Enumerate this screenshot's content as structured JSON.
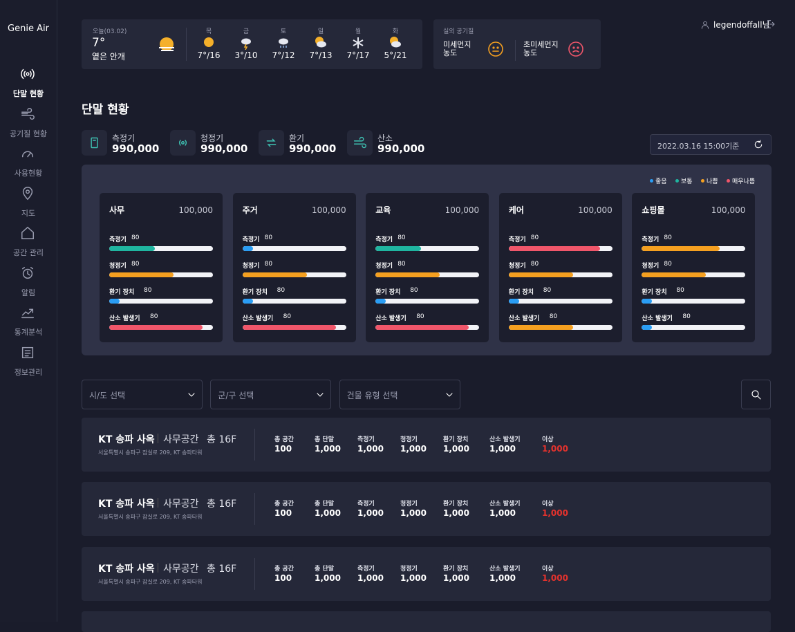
{
  "sidebar": {
    "brand": "Genie Air",
    "menu": [
      {
        "label": "단말 현황",
        "active": true
      },
      {
        "label": "공기질 현황"
      },
      {
        "label": "사용현황"
      },
      {
        "label": "지도"
      },
      {
        "label": "공간 관리"
      },
      {
        "label": "알림"
      },
      {
        "label": "통계분석"
      },
      {
        "label": "정보관리"
      }
    ]
  },
  "weather": {
    "today": {
      "label": "오늘(03.02)",
      "temp": "7°",
      "desc": "옅은 안개"
    },
    "forecast": [
      {
        "day": "목",
        "temp": "7°/16",
        "icon": "sun"
      },
      {
        "day": "금",
        "temp": "3°/10",
        "icon": "storm"
      },
      {
        "day": "토",
        "temp": "7°/12",
        "icon": "snowrain"
      },
      {
        "day": "일",
        "temp": "7°/13",
        "icon": "cloudsun"
      },
      {
        "day": "월",
        "temp": "7°/17",
        "icon": "snow"
      },
      {
        "day": "화",
        "temp": "5°/21",
        "icon": "cloudsun"
      }
    ]
  },
  "air": {
    "title": "실외 공기질",
    "items": [
      {
        "label": "미세먼지\n농도",
        "color": "#f5a020",
        "mood": "neutral"
      },
      {
        "label": "초미세먼지\n농도",
        "color": "#f0566a",
        "mood": "sad"
      }
    ]
  },
  "user": {
    "name": "legendoffall님"
  },
  "header": {
    "title": "단말 현황"
  },
  "summary": [
    {
      "label": "측정기",
      "value": "990,000"
    },
    {
      "label": "청정기",
      "value": "990,000"
    },
    {
      "label": "환기",
      "value": "990,000"
    },
    {
      "label": "산소",
      "value": "990,000"
    }
  ],
  "timestamp": "2022.03.16 15:00기준",
  "legend": [
    {
      "label": "좋음",
      "color": "#2a9df4"
    },
    {
      "label": "보통",
      "color": "#1fb5a0"
    },
    {
      "label": "나쁨",
      "color": "#f5a020"
    },
    {
      "label": "매우나쁨",
      "color": "#f0566a"
    }
  ],
  "cards": [
    {
      "title": "사무",
      "total": "100,000",
      "bars": [
        {
          "label": "측정기",
          "value": "80",
          "level": 44,
          "color": "#1fb5a0"
        },
        {
          "label": "청정기",
          "value": "80",
          "level": 62,
          "color": "#f5a020"
        },
        {
          "label": "환기 장치",
          "value": "80",
          "level": 10,
          "color": "#2a9df4"
        },
        {
          "label": "산소 발생기",
          "value": "80",
          "level": 90,
          "color": "#f0566a"
        }
      ]
    },
    {
      "title": "주거",
      "total": "100,000",
      "bars": [
        {
          "label": "측정기",
          "value": "80",
          "level": 10,
          "color": "#2a9df4"
        },
        {
          "label": "청정기",
          "value": "80",
          "level": 62,
          "color": "#f5a020"
        },
        {
          "label": "환기 장치",
          "value": "80",
          "level": 10,
          "color": "#2a9df4"
        },
        {
          "label": "산소 발생기",
          "value": "80",
          "level": 90,
          "color": "#f0566a"
        }
      ]
    },
    {
      "title": "교육",
      "total": "100,000",
      "bars": [
        {
          "label": "측정기",
          "value": "80",
          "level": 44,
          "color": "#1fb5a0"
        },
        {
          "label": "청정기",
          "value": "80",
          "level": 62,
          "color": "#f5a020"
        },
        {
          "label": "환기 장치",
          "value": "80",
          "level": 10,
          "color": "#2a9df4"
        },
        {
          "label": "산소 발생기",
          "value": "80",
          "level": 90,
          "color": "#f0566a"
        }
      ]
    },
    {
      "title": "케어",
      "total": "100,000",
      "bars": [
        {
          "label": "측정기",
          "value": "80",
          "level": 88,
          "color": "#f0566a"
        },
        {
          "label": "청정기",
          "value": "80",
          "level": 62,
          "color": "#f5a020"
        },
        {
          "label": "환기 장치",
          "value": "80",
          "level": 10,
          "color": "#2a9df4"
        },
        {
          "label": "산소 발생기",
          "value": "80",
          "level": 62,
          "color": "#f5a020"
        }
      ]
    },
    {
      "title": "쇼핑몰",
      "total": "100,000",
      "bars": [
        {
          "label": "측정기",
          "value": "80",
          "level": 75,
          "color": "#f5a020"
        },
        {
          "label": "청정기",
          "value": "80",
          "level": 62,
          "color": "#f5a020"
        },
        {
          "label": "환기 장치",
          "value": "80",
          "level": 10,
          "color": "#2a9df4"
        },
        {
          "label": "산소 발생기",
          "value": "80",
          "level": 10,
          "color": "#2a9df4"
        }
      ]
    }
  ],
  "filters": [
    "시/도 선택",
    "군/구 선택",
    "건물 유형 선택"
  ],
  "rows": [
    {
      "title": "KT 송파 사옥",
      "type": "사무공간",
      "floors": "총 16F",
      "address": "서울특별시 송파구 잠실로 209, KT 송파타워",
      "stats": [
        {
          "label": "총 공간",
          "value": "100"
        },
        {
          "label": "총 단말",
          "value": "1,000"
        },
        {
          "label": "측정기",
          "value": "1,000"
        },
        {
          "label": "청정기",
          "value": "1,000"
        },
        {
          "label": "환기 장치",
          "value": "1,000"
        },
        {
          "label": "산소 발생기",
          "value": "1,000"
        },
        {
          "label": "이상",
          "value": "1,000",
          "alert": true
        }
      ]
    },
    {
      "title": "KT 송파 사옥",
      "type": "사무공간",
      "floors": "총 16F",
      "address": "서울특별시 송파구 잠실로 209, KT 송파타워",
      "stats": [
        {
          "label": "총 공간",
          "value": "100"
        },
        {
          "label": "총 단말",
          "value": "1,000"
        },
        {
          "label": "측정기",
          "value": "1,000"
        },
        {
          "label": "청정기",
          "value": "1,000"
        },
        {
          "label": "환기 장치",
          "value": "1,000"
        },
        {
          "label": "산소 발생기",
          "value": "1,000"
        },
        {
          "label": "이상",
          "value": "1,000",
          "alert": true
        }
      ]
    },
    {
      "title": "KT 송파 사옥",
      "type": "사무공간",
      "floors": "총 16F",
      "address": "서울특별시 송파구 잠실로 209, KT 송파타워",
      "stats": [
        {
          "label": "총 공간",
          "value": "100"
        },
        {
          "label": "총 단말",
          "value": "1,000"
        },
        {
          "label": "측정기",
          "value": "1,000"
        },
        {
          "label": "청정기",
          "value": "1,000"
        },
        {
          "label": "환기 장치",
          "value": "1,000"
        },
        {
          "label": "산소 발생기",
          "value": "1,000"
        },
        {
          "label": "이상",
          "value": "1,000",
          "alert": true
        }
      ]
    }
  ]
}
